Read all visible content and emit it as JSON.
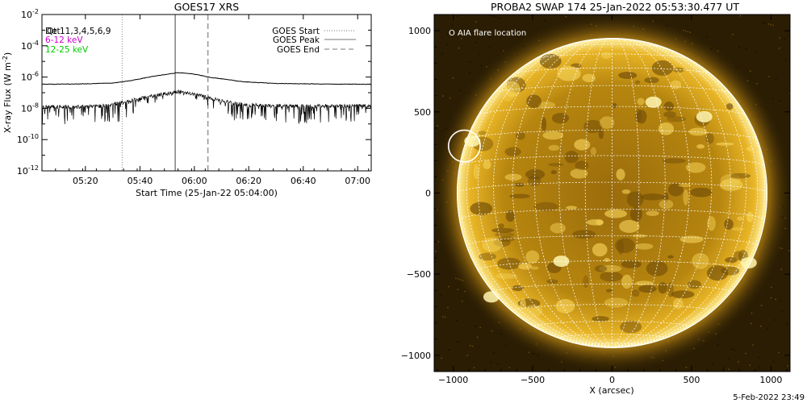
{
  "chart_data": [
    {
      "type": "line",
      "title": "GOES17 XRS",
      "xlabel": "Start Time (25-Jan-22 05:04:00)",
      "ylabel": "X-ray Flux (W m",
      "ylabel_sup": "-2",
      "ylabel_tail": ")",
      "x_range_minutes": [
        5.067,
        7.083
      ],
      "x_ticks": [
        {
          "label": "05:20",
          "hour": 5.333
        },
        {
          "label": "05:40",
          "hour": 5.667
        },
        {
          "label": "06:00",
          "hour": 6.0
        },
        {
          "label": "06:20",
          "hour": 6.333
        },
        {
          "label": "06:40",
          "hour": 6.667
        },
        {
          "label": "07:00",
          "hour": 7.0
        }
      ],
      "y_scale": "log",
      "ylim_exp": [
        -12,
        -2
      ],
      "y_ticks": [
        {
          "base": "10",
          "exp": "-2",
          "value_exp": -2
        },
        {
          "base": "10",
          "exp": "-4",
          "value_exp": -4
        },
        {
          "base": "10",
          "exp": "-6",
          "value_exp": -6
        },
        {
          "base": "10",
          "exp": "-8",
          "value_exp": -8
        },
        {
          "base": "10",
          "exp": "-10",
          "value_exp": -10
        },
        {
          "base": "10",
          "exp": "-12",
          "value_exp": -12
        }
      ],
      "detector_text_a": "Det",
      "detector_text_b": "Qt",
      "detector_text_c": "11,3,4,5,6,9",
      "series": [
        {
          "name": "6-12 keV",
          "color": "#cc00cc",
          "points": [
            [
              5.067,
              -6.46
            ],
            [
              5.3,
              -6.44
            ],
            [
              5.5,
              -6.38
            ],
            [
              5.6,
              -6.25
            ],
            [
              5.75,
              -5.95
            ],
            [
              5.9,
              -5.72
            ],
            [
              5.98,
              -5.78
            ],
            [
              6.1,
              -6.02
            ],
            [
              6.3,
              -6.3
            ],
            [
              6.5,
              -6.41
            ],
            [
              6.8,
              -6.45
            ],
            [
              7.083,
              -6.46
            ]
          ]
        },
        {
          "name": "12-25 keV",
          "color": "#00cc00",
          "points": [
            [
              5.067,
              -7.9
            ],
            [
              5.3,
              -7.92
            ],
            [
              5.45,
              -7.85
            ],
            [
              5.6,
              -7.55
            ],
            [
              5.75,
              -7.2
            ],
            [
              5.9,
              -6.95
            ],
            [
              6.0,
              -7.1
            ],
            [
              6.15,
              -7.5
            ],
            [
              6.3,
              -7.78
            ],
            [
              6.5,
              -7.85
            ],
            [
              6.8,
              -7.85
            ],
            [
              7.083,
              -7.85
            ]
          ]
        }
      ],
      "goes_start_hour": 5.558,
      "goes_peak_hour": 5.883,
      "goes_end_hour": 6.083,
      "legend": [
        {
          "label": "GOES Start",
          "style": "dotted"
        },
        {
          "label": "GOES Peak",
          "style": "solid"
        },
        {
          "label": "GOES End",
          "style": "dashed"
        }
      ],
      "legend_placement": "top-right"
    },
    {
      "type": "heatmap",
      "title": "PROBA2 SWAP 174 25-Jan-2022 05:53:30.477 UT",
      "xlabel": "X (arcsec)",
      "x_ticks": [
        -1000,
        -500,
        0,
        500,
        1000
      ],
      "y_ticks": [
        1000,
        500,
        0,
        -500,
        -1000
      ],
      "x_tick_labels": [
        "−1000",
        "−500",
        "0",
        "500",
        "1000"
      ],
      "y_tick_labels": [
        "1000",
        "500",
        "0",
        "−500",
        "−1000"
      ],
      "xlim": [
        -1120,
        1120
      ],
      "ylim": [
        -1100,
        1100
      ],
      "solar_radius_arcsec": 975,
      "annotation": "O AIA flare location",
      "flare_location_arcsec": [
        -930,
        290
      ],
      "flare_circle_radius_arcsec": 100
    }
  ],
  "footer": {
    "timestamp": "5-Feb-2022 23:49"
  },
  "colors": {
    "sun_bright": "#fff3a0",
    "sun_mid": "#e0a418",
    "sun_dark": "#7a5206",
    "sky": "#2a1d03",
    "grid": "#ffffff"
  }
}
